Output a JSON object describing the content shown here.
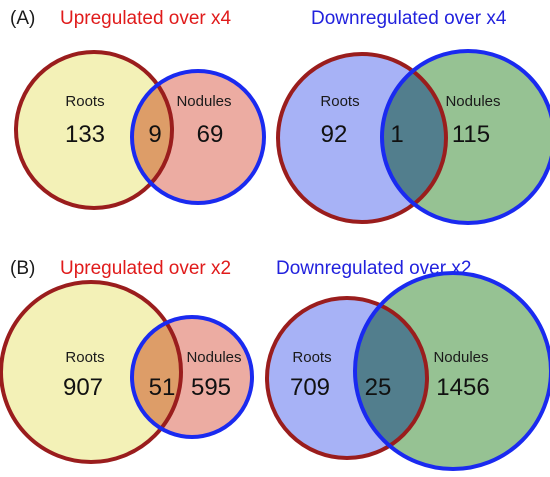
{
  "colors": {
    "upregulated": "#e01b1b",
    "downregulated": "#2222dd",
    "roots_fill_up": "#f3f1b7",
    "nodules_fill_up": "#ecaca2",
    "overlap_fill_up": "#dd9d68",
    "roots_fill_down": "#a7b2f6",
    "nodules_fill_down": "#96c293",
    "overlap_fill_down": "#527e8d",
    "roots_outline": "#9a1d1d",
    "nodules_outline": "#1a2af0"
  },
  "panels": [
    {
      "label": "(A)",
      "diagrams": [
        {
          "heading": "Upregulated  over x4",
          "direction": "upregulated",
          "sets": [
            {
              "name": "Roots",
              "count": "133"
            },
            {
              "name": "Nodules",
              "count": "69"
            }
          ],
          "overlap": "9"
        },
        {
          "heading": "Downregulated over x4",
          "direction": "downregulated",
          "sets": [
            {
              "name": "Roots",
              "count": "92"
            },
            {
              "name": "Nodules",
              "count": "115"
            }
          ],
          "overlap": "1"
        }
      ]
    },
    {
      "label": "(B)",
      "diagrams": [
        {
          "heading": "Upregulated over x2",
          "direction": "upregulated",
          "sets": [
            {
              "name": "Roots",
              "count": "907"
            },
            {
              "name": "Nodules",
              "count": "595"
            }
          ],
          "overlap": "51"
        },
        {
          "heading": "Downregulated over x2",
          "direction": "downregulated",
          "sets": [
            {
              "name": "Roots",
              "count": "709"
            },
            {
              "name": "Nodules",
              "count": "1456"
            }
          ],
          "overlap": "25"
        }
      ]
    }
  ]
}
